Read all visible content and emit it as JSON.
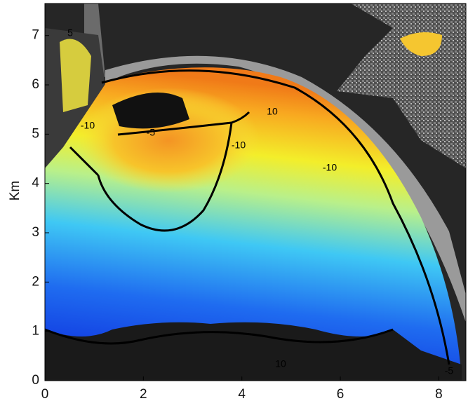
{
  "chart_data": {
    "type": "image-map",
    "ylabel": "Km",
    "xlim": [
      0,
      8.55
    ],
    "ylim": [
      0,
      7.65
    ],
    "xticks": [
      0,
      2,
      4,
      6,
      8
    ],
    "yticks": [
      0,
      1,
      2,
      3,
      4,
      5,
      6,
      7
    ],
    "annotations": [
      "5",
      "-10",
      "-5",
      "-10",
      "10",
      "-10",
      "10",
      "-5"
    ]
  }
}
